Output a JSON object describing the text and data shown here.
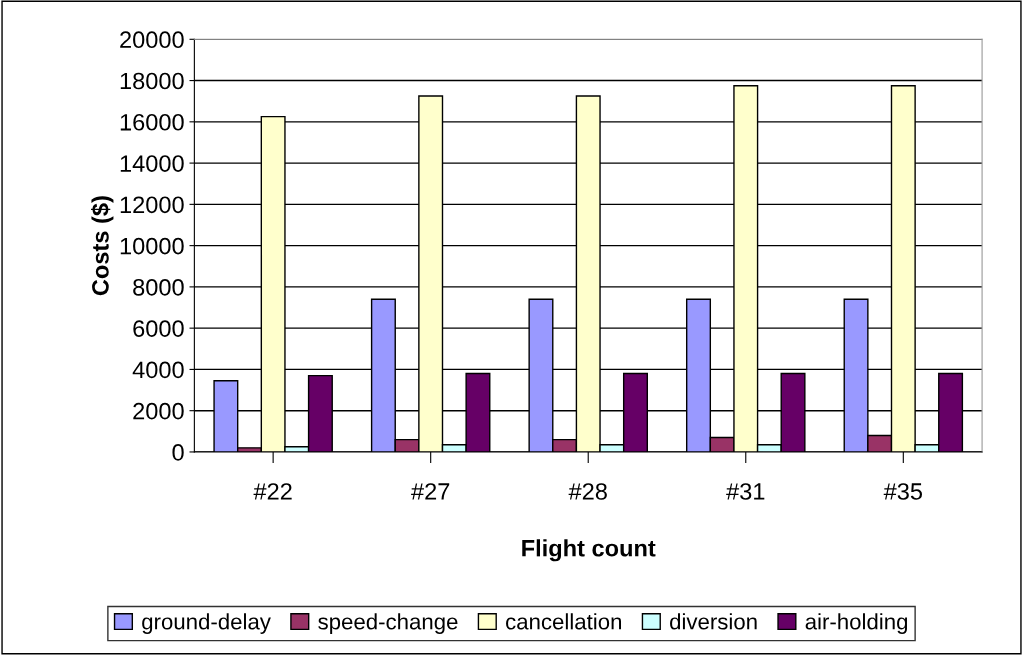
{
  "chart_data": {
    "type": "bar",
    "xlabel": "Flight count",
    "ylabel": "Costs ($)",
    "categories": [
      "#22",
      "#27",
      "#28",
      "#31",
      "#35"
    ],
    "series": [
      {
        "name": "ground-delay",
        "color": "#9999ff",
        "values": [
          3450,
          7400,
          7400,
          7400,
          7400
        ]
      },
      {
        "name": "speed-change",
        "color": "#993366",
        "values": [
          200,
          600,
          600,
          700,
          800
        ]
      },
      {
        "name": "cancellation",
        "color": "#ffffcc",
        "values": [
          16250,
          17250,
          17250,
          17750,
          17750
        ]
      },
      {
        "name": "diversion",
        "color": "#ccffff",
        "values": [
          250,
          350,
          350,
          350,
          350
        ]
      },
      {
        "name": "air-holding",
        "color": "#660066",
        "values": [
          3700,
          3800,
          3800,
          3800,
          3800
        ]
      }
    ],
    "ylim": [
      0,
      20000
    ],
    "yticks": [
      0,
      2000,
      4000,
      6000,
      8000,
      10000,
      12000,
      14000,
      16000,
      18000,
      20000
    ],
    "grid": "y",
    "legend": "bottom"
  }
}
